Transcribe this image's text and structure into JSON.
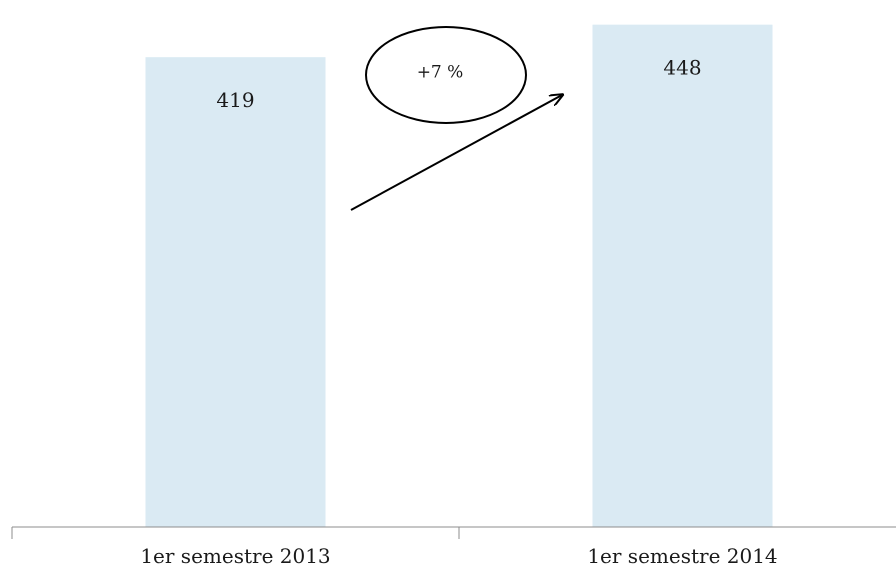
{
  "chart_data": {
    "type": "bar",
    "categories": [
      "1er semestre 2013",
      "1er semestre 2014"
    ],
    "values": [
      419,
      448
    ],
    "data_labels": [
      "419",
      "448"
    ],
    "ylim": [
      0,
      470
    ],
    "grid": false,
    "bar_color": "#daeaf3",
    "axis_color": "#8c8c8c",
    "annotation": {
      "text": "+7 %",
      "shape": "ellipse",
      "arrow": "from 1er semestre 2013 to 1er semestre 2014"
    }
  }
}
